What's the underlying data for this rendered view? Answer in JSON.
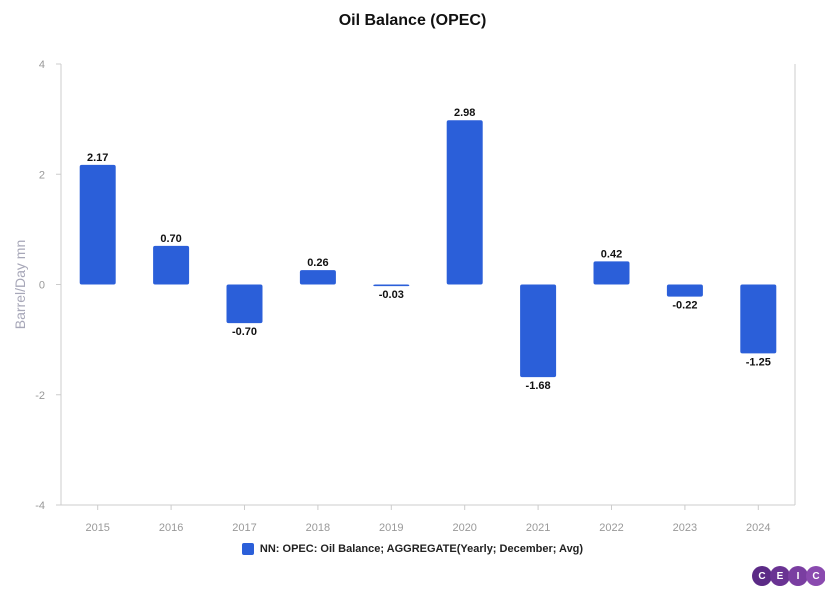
{
  "chart_data": {
    "type": "bar",
    "title": "Oil Balance (OPEC)",
    "ylabel": "Barrel/Day mn",
    "xlabel": "",
    "categories": [
      "2015",
      "2016",
      "2017",
      "2018",
      "2019",
      "2020",
      "2021",
      "2022",
      "2023",
      "2024"
    ],
    "series": [
      {
        "name": "NN: OPEC: Oil Balance; AGGREGATE(Yearly; December; Avg)",
        "values": [
          2.17,
          0.7,
          -0.7,
          0.26,
          -0.03,
          2.98,
          -1.68,
          0.42,
          -0.22,
          -1.25
        ],
        "labels": [
          "2.17",
          "0.70",
          "-0.70",
          "0.26",
          "-0.03",
          "2.98",
          "-1.68",
          "0.42",
          "-0.22",
          "-1.25"
        ],
        "color": "#2B5FD9"
      }
    ],
    "ylim": [
      -4,
      4
    ],
    "yticks": [
      4,
      2,
      0,
      -2,
      -4
    ],
    "grid": false,
    "legend": "bottom-center"
  },
  "logo": {
    "letters": [
      "C",
      "E",
      "I",
      "C"
    ],
    "colors": [
      "#5B2A86",
      "#6A3393",
      "#7A3EA1",
      "#8A4AAF"
    ]
  },
  "colors": {
    "axis": "#cccccc",
    "tick_text": "#999999",
    "label_text": "#111111"
  }
}
